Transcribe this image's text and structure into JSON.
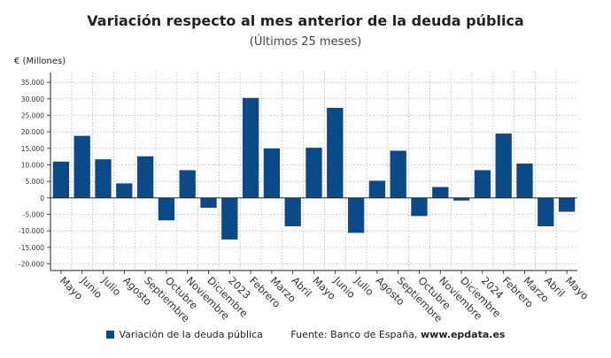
{
  "colors": {
    "bar": "#0b4a86",
    "grid": "#b8b8b8",
    "axis": "#222222"
  },
  "source": {
    "label": "Fuente: Banco de España,",
    "site": "www.epdata.es"
  },
  "chart_data": {
    "type": "bar",
    "title": "Variación respecto al mes anterior de la deuda pública",
    "subtitle": "(Últimos 25 meses)",
    "ylabel": "€ (Millones)",
    "xlabel": "",
    "ylim": [
      -22000,
      38000
    ],
    "yticks": [
      35000,
      30000,
      25000,
      20000,
      15000,
      10000,
      5000,
      0,
      -5000,
      -10000,
      -15000,
      -20000
    ],
    "ytick_labels": [
      "35.000",
      "30.000",
      "25.000",
      "20.000",
      "15.000",
      "10.000",
      "5.000",
      "0",
      "-5.000",
      "-10.000",
      "-15.000",
      "-20.000"
    ],
    "grid": true,
    "legend_position": "bottom",
    "categories": [
      "Mayo",
      "Junio",
      "Julio",
      "Agosto",
      "Septiembre",
      "Octubre",
      "Noviembre",
      "Diciembre",
      "2023",
      "Febrero",
      "Marzo",
      "Abril",
      "Mayo",
      "Junio",
      "Julio",
      "Agosto",
      "Septiembre",
      "Octubre",
      "Noviembre",
      "Diciembre",
      "2024",
      "Febrero",
      "Marzo",
      "Abril",
      "Mayo"
    ],
    "series": [
      {
        "name": "Variación de la deuda pública",
        "values": [
          11000,
          18800,
          11700,
          4400,
          12600,
          -6800,
          8400,
          -3000,
          -12600,
          30300,
          15000,
          -8600,
          15200,
          27300,
          -10600,
          5200,
          14300,
          -5500,
          3300,
          -800,
          8400,
          19500,
          10400,
          -8600,
          -4200
        ]
      }
    ]
  }
}
